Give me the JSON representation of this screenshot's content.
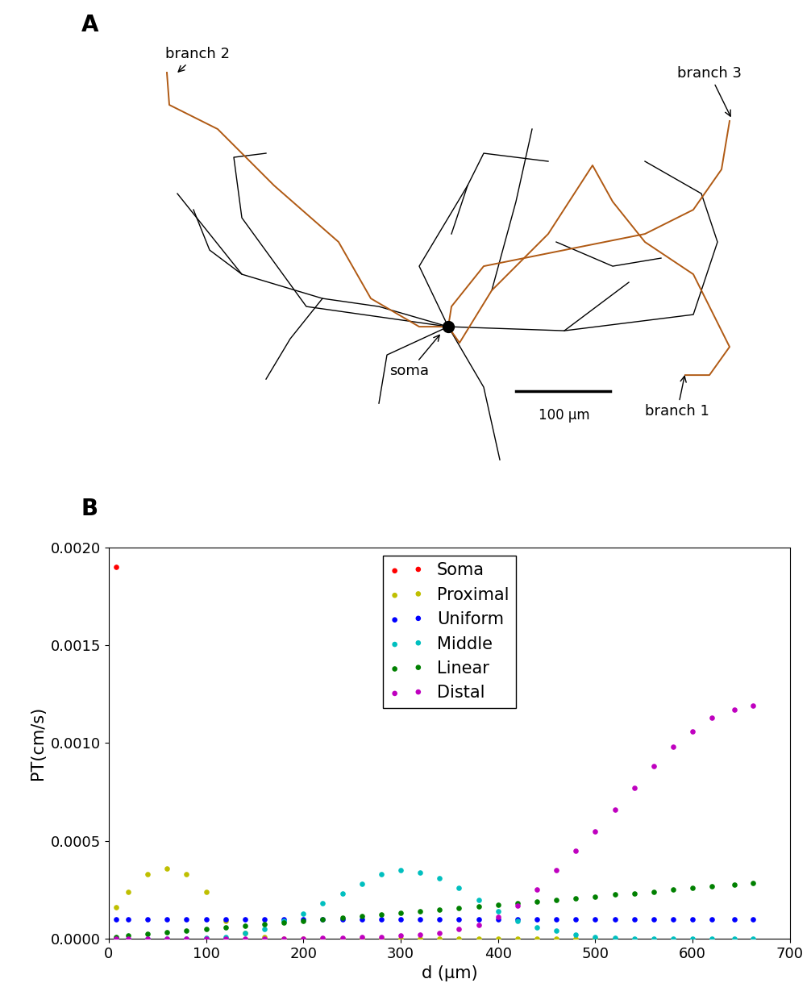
{
  "diagram": {
    "panel_label": "A",
    "labels": {
      "branch_1": "branch 1",
      "branch_2": "branch 2",
      "branch_3": "branch 3",
      "soma": "soma"
    },
    "scale_bar": "100 μm"
  },
  "chart_data": {
    "type": "scatter",
    "panel_label": "B",
    "x_label": "d (μm)",
    "y_label": "PT(cm/s)",
    "x": [
      8,
      20,
      40,
      60,
      80,
      100,
      120,
      140,
      160,
      180,
      200,
      220,
      240,
      260,
      280,
      300,
      320,
      340,
      360,
      380,
      400,
      420,
      440,
      460,
      480,
      500,
      520,
      540,
      560,
      580,
      600,
      620,
      643,
      662
    ],
    "series": [
      {
        "name": "Soma",
        "color": "#ff0000",
        "marker": "circle",
        "values": [
          0.0019,
          null,
          null,
          null,
          null,
          null,
          null,
          null,
          null,
          null,
          null,
          null,
          null,
          null,
          null,
          null,
          null,
          null,
          null,
          null,
          null,
          null,
          null,
          null,
          null,
          null,
          null,
          null,
          null,
          null,
          null,
          null,
          null,
          null
        ]
      },
      {
        "name": "Proximal",
        "color": "#bfbf00",
        "marker": "circle",
        "values": [
          0.00016,
          0.00024,
          0.00033,
          0.00036,
          0.00033,
          0.00024,
          9e-05,
          3e-05,
          1e-05,
          0,
          0,
          0,
          0,
          0,
          0,
          0,
          0,
          0,
          0,
          0,
          0,
          0,
          0,
          0,
          0,
          0,
          null,
          null,
          null,
          null,
          null,
          null,
          null,
          null
        ]
      },
      {
        "name": "Uniform",
        "color": "#0000ff",
        "marker": "circle",
        "values": [
          0.0001,
          0.0001,
          0.0001,
          0.0001,
          0.0001,
          0.0001,
          0.0001,
          0.0001,
          0.0001,
          0.0001,
          0.0001,
          0.0001,
          0.0001,
          0.0001,
          0.0001,
          0.0001,
          0.0001,
          0.0001,
          0.0001,
          0.0001,
          0.0001,
          0.0001,
          0.0001,
          0.0001,
          0.0001,
          0.0001,
          0.0001,
          0.0001,
          0.0001,
          0.0001,
          0.0001,
          0.0001,
          0.0001,
          0.0001
        ]
      },
      {
        "name": "Middle",
        "color": "#00bfbf",
        "marker": "circle",
        "values": [
          0,
          0,
          0,
          0,
          0,
          5e-06,
          1e-05,
          3e-05,
          5e-05,
          9e-05,
          0.00013,
          0.00018,
          0.00023,
          0.00028,
          0.00033,
          0.00035,
          0.00034,
          0.00031,
          0.00026,
          0.0002,
          0.00014,
          9e-05,
          6e-05,
          4e-05,
          2e-05,
          1e-05,
          5e-06,
          0,
          0,
          0,
          0,
          0,
          0,
          0
        ]
      },
      {
        "name": "Linear",
        "color": "#008000",
        "marker": "circle",
        "values": [
          1e-05,
          1.6e-05,
          2.5e-05,
          3.3e-05,
          4.2e-05,
          5e-05,
          5.8e-05,
          6.6e-05,
          7.5e-05,
          8.3e-05,
          9.1e-05,
          0.0001,
          0.000108,
          0.000116,
          0.000124,
          0.000133,
          0.000141,
          0.00015,
          0.000158,
          0.000166,
          0.000175,
          0.000183,
          0.000191,
          0.0002,
          0.000208,
          0.000216,
          0.000225,
          0.000233,
          0.000241,
          0.00025,
          0.000258,
          0.000266,
          0.000276,
          0.000284
        ]
      },
      {
        "name": "Distal",
        "color": "#bf00bf",
        "marker": "circle",
        "values": [
          0,
          0,
          0,
          0,
          0,
          0,
          0,
          0,
          0,
          0,
          2e-06,
          3e-06,
          5e-06,
          7e-06,
          1e-05,
          1.5e-05,
          2e-05,
          3e-05,
          5e-05,
          7e-05,
          0.00011,
          0.00017,
          0.00025,
          0.00035,
          0.00045,
          0.00055,
          0.00066,
          0.00077,
          0.00088,
          0.00098,
          0.00106,
          0.00113,
          0.00117,
          0.00119
        ]
      }
    ],
    "xlim": [
      0,
      700
    ],
    "xticks": [
      0,
      100,
      200,
      300,
      400,
      500,
      600,
      700
    ],
    "ylim": [
      0,
      0.002
    ],
    "yticks": [
      {
        "value": 0,
        "label": "0.0000"
      },
      {
        "value": 0.0005,
        "label": "0.0005"
      },
      {
        "value": 0.001,
        "label": "0.0010"
      },
      {
        "value": 0.0015,
        "label": "0.0015"
      },
      {
        "value": 0.002,
        "label": "0.0020"
      }
    ],
    "legend": "upper center",
    "grid": false
  }
}
